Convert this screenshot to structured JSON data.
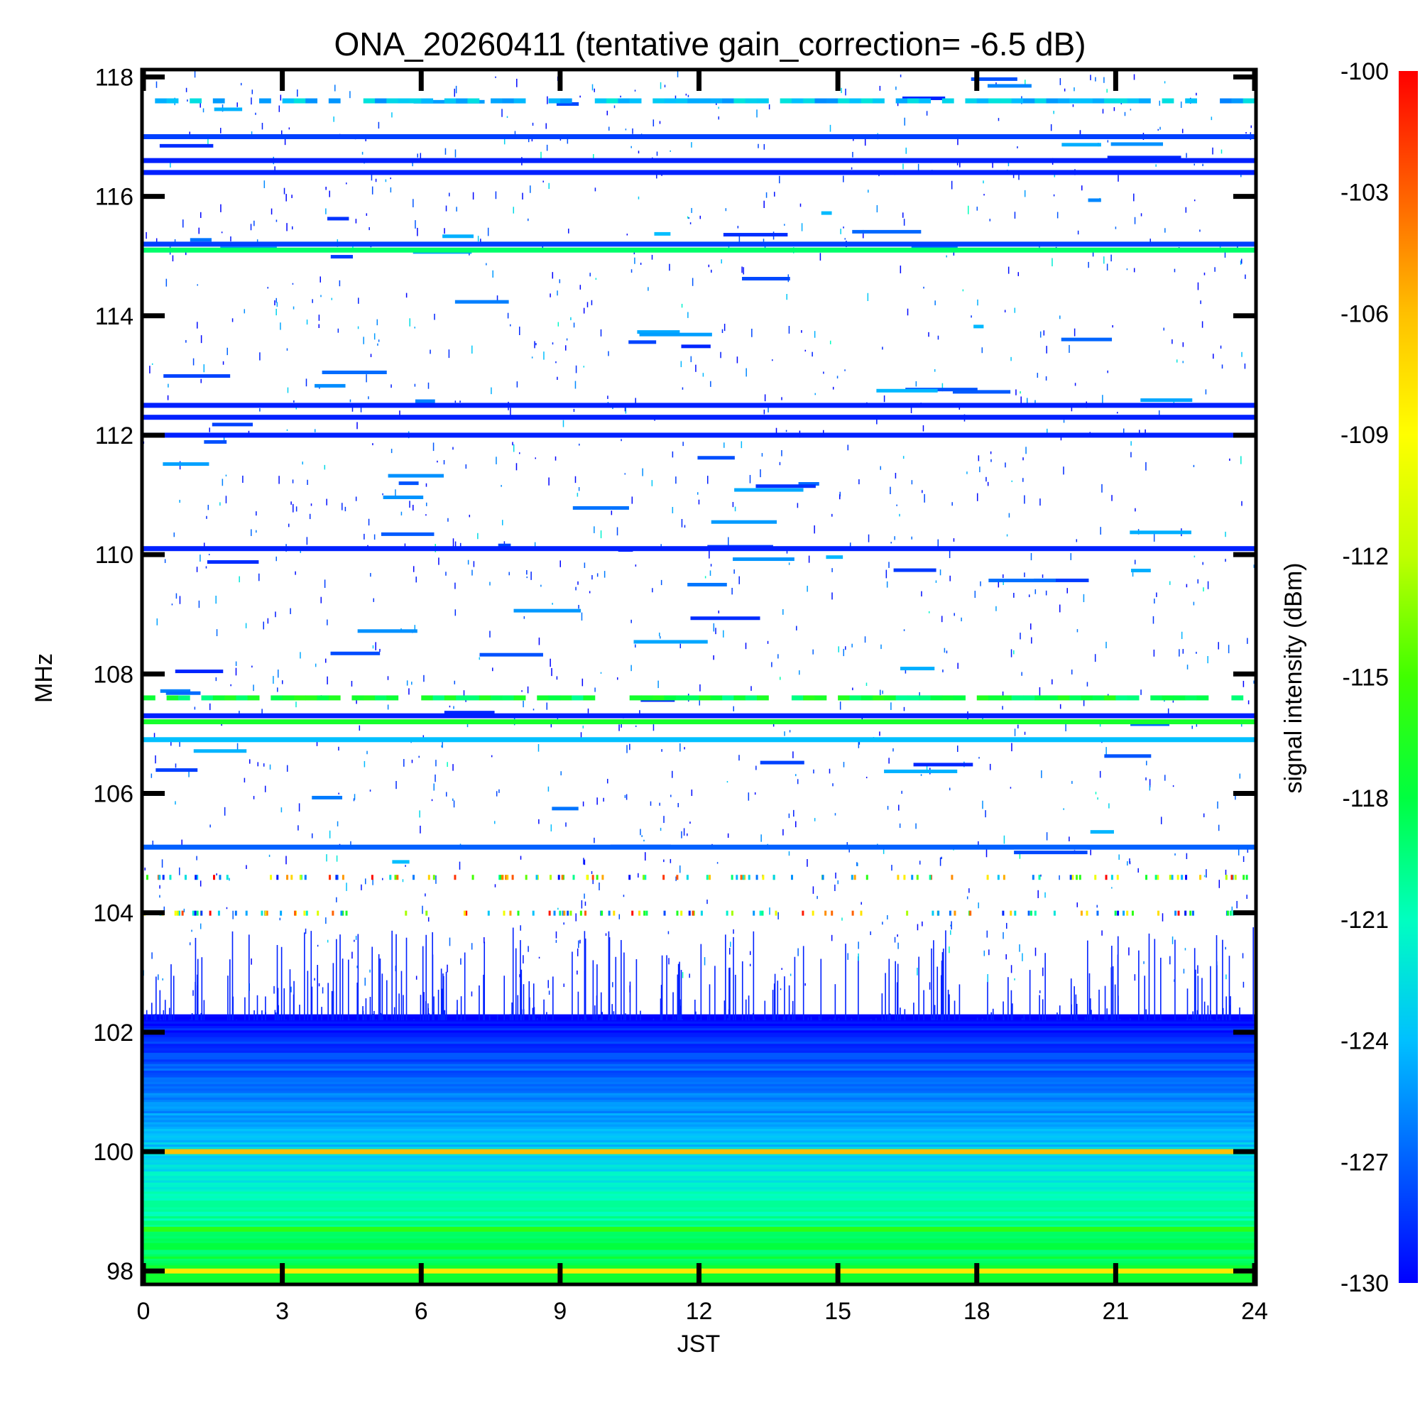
{
  "chart_data": {
    "type": "heatmap",
    "title": "ONA_20260411 (tentative gain_correction= -6.5 dB)",
    "xlabel": "JST",
    "ylabel": "MHz",
    "xlim": [
      0,
      24
    ],
    "ylim": [
      97.8,
      118.1
    ],
    "x_ticks": [
      "0",
      "3",
      "6",
      "9",
      "12",
      "15",
      "18",
      "21",
      "24"
    ],
    "y_ticks": [
      "98",
      "100",
      "102",
      "104",
      "106",
      "108",
      "110",
      "112",
      "114",
      "116",
      "118"
    ],
    "colorbar": {
      "label": "signal intensity (dBm)",
      "range": [
        -130,
        -100
      ],
      "ticks": [
        "-100",
        "-103",
        "-106",
        "-109",
        "-112",
        "-115",
        "-118",
        "-121",
        "-124",
        "-127",
        "-130"
      ],
      "colormap": [
        "#0000ff",
        "#0060ff",
        "#00c0ff",
        "#00ffc0",
        "#00ff40",
        "#40ff00",
        "#c0ff00",
        "#ffff00",
        "#ffc000",
        "#ff6000",
        "#ff0000"
      ]
    },
    "persistent_bands": [
      {
        "freq_mhz": 98.0,
        "level_dbm": -108,
        "coverage": "full"
      },
      {
        "freq_mhz": 98.7,
        "level_dbm": -116,
        "coverage": "full"
      },
      {
        "freq_mhz": 100.0,
        "level_dbm": -106,
        "coverage": "full"
      },
      {
        "freq_mhz": 105.1,
        "level_dbm": -127,
        "coverage": "full"
      },
      {
        "freq_mhz": 106.9,
        "level_dbm": -124,
        "coverage": "full"
      },
      {
        "freq_mhz": 107.2,
        "level_dbm": -117,
        "coverage": "full"
      },
      {
        "freq_mhz": 107.3,
        "level_dbm": -129,
        "coverage": "full"
      },
      {
        "freq_mhz": 107.6,
        "level_dbm": -118,
        "coverage": "partial"
      },
      {
        "freq_mhz": 110.1,
        "level_dbm": -129,
        "coverage": "full"
      },
      {
        "freq_mhz": 112.0,
        "level_dbm": -129,
        "coverage": "full"
      },
      {
        "freq_mhz": 112.3,
        "level_dbm": -129,
        "coverage": "full"
      },
      {
        "freq_mhz": 112.5,
        "level_dbm": -129,
        "coverage": "full"
      },
      {
        "freq_mhz": 115.1,
        "level_dbm": -119,
        "coverage": "full"
      },
      {
        "freq_mhz": 115.2,
        "level_dbm": -128,
        "coverage": "full"
      },
      {
        "freq_mhz": 116.4,
        "level_dbm": -129,
        "coverage": "full"
      },
      {
        "freq_mhz": 116.6,
        "level_dbm": -129,
        "coverage": "full"
      },
      {
        "freq_mhz": 117.0,
        "level_dbm": -128,
        "coverage": "full"
      },
      {
        "freq_mhz": 117.6,
        "level_dbm": -124,
        "coverage": "partial"
      }
    ],
    "noise_floor_region": {
      "from_mhz": 97.8,
      "to_mhz": 102.3,
      "level_dbm_range": [
        -130,
        -117
      ]
    },
    "sporadic_band": {
      "from_mhz": 104.0,
      "to_mhz": 104.6,
      "level_dbm_range": [
        -130,
        -100
      ]
    }
  }
}
